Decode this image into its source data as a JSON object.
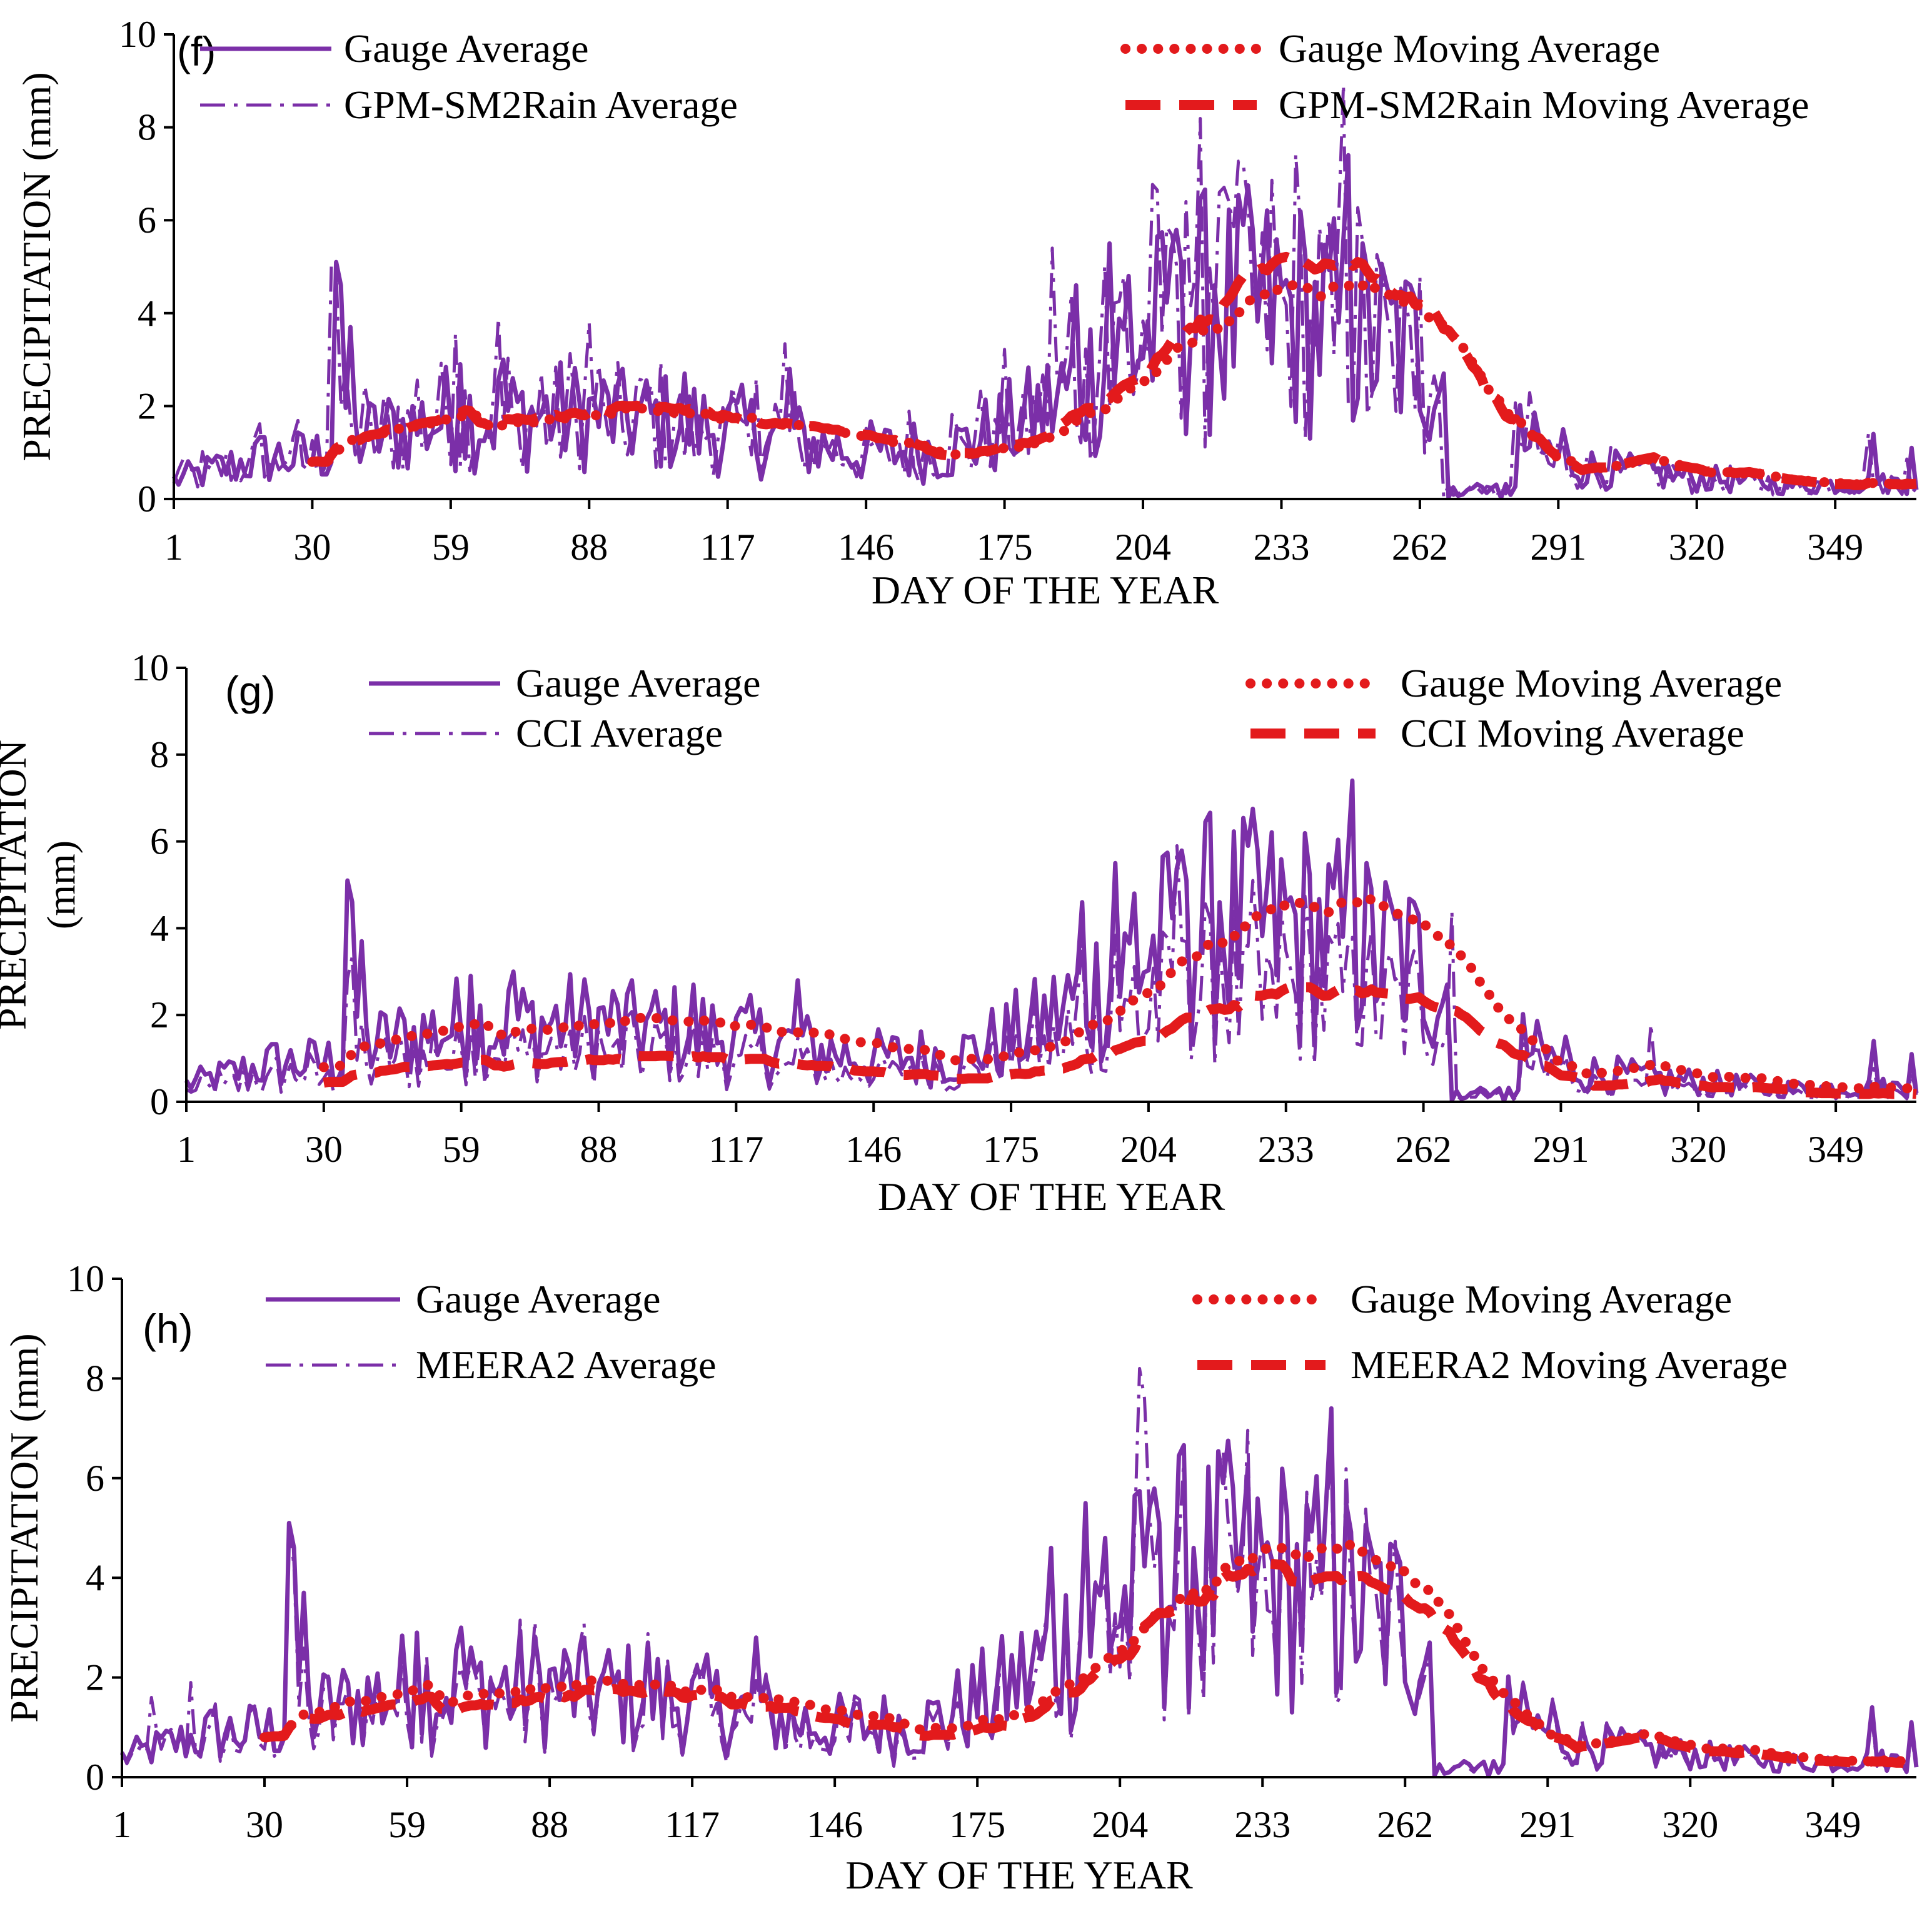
{
  "colors": {
    "gauge": "#7b2fa8",
    "moving": "#e31a1c",
    "axis": "#000000"
  },
  "chart_data": [
    {
      "type": "line",
      "panel_label": "(f)",
      "xlabel": "DAY OF THE YEAR",
      "ylabel_lines": [
        "PRECIPITATION (mm)"
      ],
      "xlim": [
        1,
        366
      ],
      "ylim": [
        0,
        10
      ],
      "xticks": [
        1,
        30,
        59,
        88,
        117,
        146,
        175,
        204,
        233,
        262,
        291,
        320,
        349
      ],
      "yticks": [
        0,
        2,
        4,
        6,
        8,
        10
      ],
      "legend": [
        "Gauge Average",
        "GPM-SM2Rain Average",
        "Gauge Moving  Average",
        "GPM-SM2Rain Moving  Average"
      ],
      "series": [
        {
          "name": "Gauge Average",
          "style": "solid",
          "values": []
        },
        {
          "name": "GPM-SM2Rain Average",
          "style": "dashdot",
          "values": []
        },
        {
          "name": "Gauge Moving  Average",
          "style": "dotted",
          "values": []
        },
        {
          "name": "GPM-SM2Rain Moving  Average",
          "style": "dashed",
          "values": []
        }
      ]
    },
    {
      "type": "line",
      "panel_label": "(g)",
      "xlabel": "DAY OF THE YEAR",
      "ylabel_lines": [
        "PRECIPITATION",
        "(mm)"
      ],
      "xlim": [
        1,
        366
      ],
      "ylim": [
        0,
        10
      ],
      "xticks": [
        1,
        30,
        59,
        88,
        117,
        146,
        175,
        204,
        233,
        262,
        291,
        320,
        349
      ],
      "yticks": [
        0,
        2,
        4,
        6,
        8,
        10
      ],
      "legend": [
        "Gauge Average",
        "CCI Average",
        "Gauge Moving  Average",
        "CCI Moving  Average"
      ],
      "series": [
        {
          "name": "Gauge Average",
          "style": "solid",
          "values": []
        },
        {
          "name": "CCI Average",
          "style": "dashdot",
          "values": []
        },
        {
          "name": "Gauge Moving  Average",
          "style": "dotted",
          "values": []
        },
        {
          "name": "CCI Moving  Average",
          "style": "dashed",
          "values": []
        }
      ]
    },
    {
      "type": "line",
      "panel_label": "(h)",
      "xlabel": "DAY OF THE YEAR",
      "ylabel_lines": [
        "PRECIPITATION (mm)"
      ],
      "xlim": [
        1,
        366
      ],
      "ylim": [
        0,
        10
      ],
      "xticks": [
        1,
        30,
        59,
        88,
        117,
        146,
        175,
        204,
        233,
        262,
        291,
        320,
        349
      ],
      "yticks": [
        0,
        2,
        4,
        6,
        8,
        10
      ],
      "legend": [
        "Gauge Average",
        "MEERA2 Average",
        "Gauge Moving  Average",
        "MEERA2 Moving  Average"
      ],
      "series": [
        {
          "name": "Gauge Average",
          "style": "solid",
          "values": []
        },
        {
          "name": "MEERA2 Average",
          "style": "dashdot",
          "values": []
        },
        {
          "name": "Gauge Moving  Average",
          "style": "dotted",
          "values": []
        },
        {
          "name": "MEERA2 Moving  Average",
          "style": "dashed",
          "values": []
        }
      ]
    }
  ]
}
